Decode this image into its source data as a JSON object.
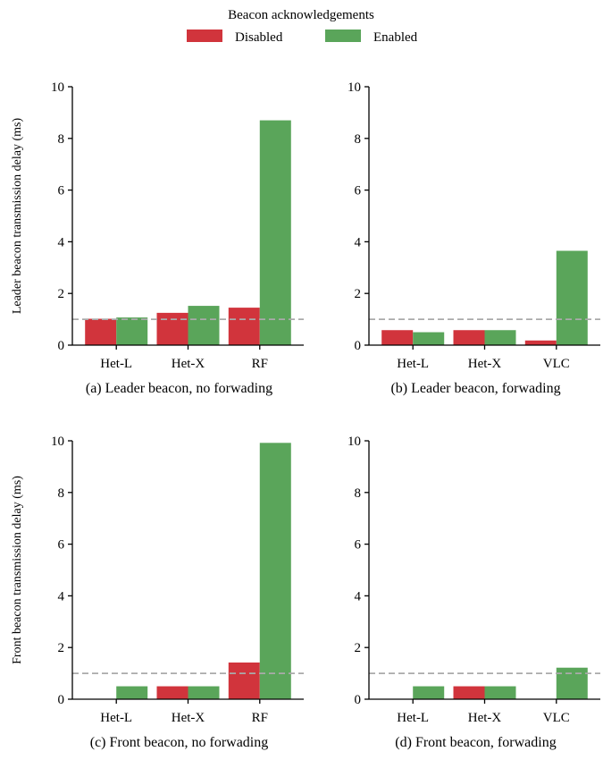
{
  "legend": {
    "title": "Beacon acknowledgements",
    "entries": [
      {
        "label": "Disabled",
        "color": "#d1343c"
      },
      {
        "label": "Enabled",
        "color": "#5aa55a"
      }
    ]
  },
  "reference_line": {
    "value": 1,
    "color": "#aaaaaa",
    "style": "dashed"
  },
  "chart_data": [
    {
      "type": "bar",
      "caption": "(a) Leader beacon, no forwading",
      "ylabel": "Leader beacon transmission delay (ms)",
      "categories": [
        "Het-L",
        "Het-X",
        "RF"
      ],
      "series": [
        {
          "name": "Disabled",
          "values": [
            1.02,
            1.25,
            1.45
          ]
        },
        {
          "name": "Enabled",
          "values": [
            1.07,
            1.52,
            8.7
          ]
        }
      ],
      "ylim": [
        0,
        10
      ],
      "yticks": [
        0,
        2,
        4,
        6,
        8,
        10
      ],
      "grid": false
    },
    {
      "type": "bar",
      "caption": "(b) Leader beacon, forwading",
      "ylabel": "",
      "categories": [
        "Het-L",
        "Het-X",
        "VLC"
      ],
      "series": [
        {
          "name": "Disabled",
          "values": [
            0.58,
            0.58,
            0.18
          ]
        },
        {
          "name": "Enabled",
          "values": [
            0.5,
            0.58,
            3.65
          ]
        }
      ],
      "ylim": [
        0,
        10
      ],
      "yticks": [
        0,
        2,
        4,
        6,
        8,
        10
      ],
      "grid": false
    },
    {
      "type": "bar",
      "caption": "(c) Front beacon, no forwading",
      "ylabel": "Front beacon transmission delay (ms)",
      "categories": [
        "Het-L",
        "Het-X",
        "RF"
      ],
      "series": [
        {
          "name": "Disabled",
          "values": [
            0,
            0.5,
            1.42
          ]
        },
        {
          "name": "Enabled",
          "values": [
            0.5,
            0.5,
            9.92
          ]
        }
      ],
      "ylim": [
        0,
        10
      ],
      "yticks": [
        0,
        2,
        4,
        6,
        8,
        10
      ],
      "grid": false
    },
    {
      "type": "bar",
      "caption": "(d) Front beacon, forwading",
      "ylabel": "",
      "categories": [
        "Het-L",
        "Het-X",
        "VLC"
      ],
      "series": [
        {
          "name": "Disabled",
          "values": [
            0,
            0.5,
            0
          ]
        },
        {
          "name": "Enabled",
          "values": [
            0.5,
            0.5,
            1.22
          ]
        }
      ],
      "ylim": [
        0,
        10
      ],
      "yticks": [
        0,
        2,
        4,
        6,
        8,
        10
      ],
      "grid": false
    }
  ]
}
